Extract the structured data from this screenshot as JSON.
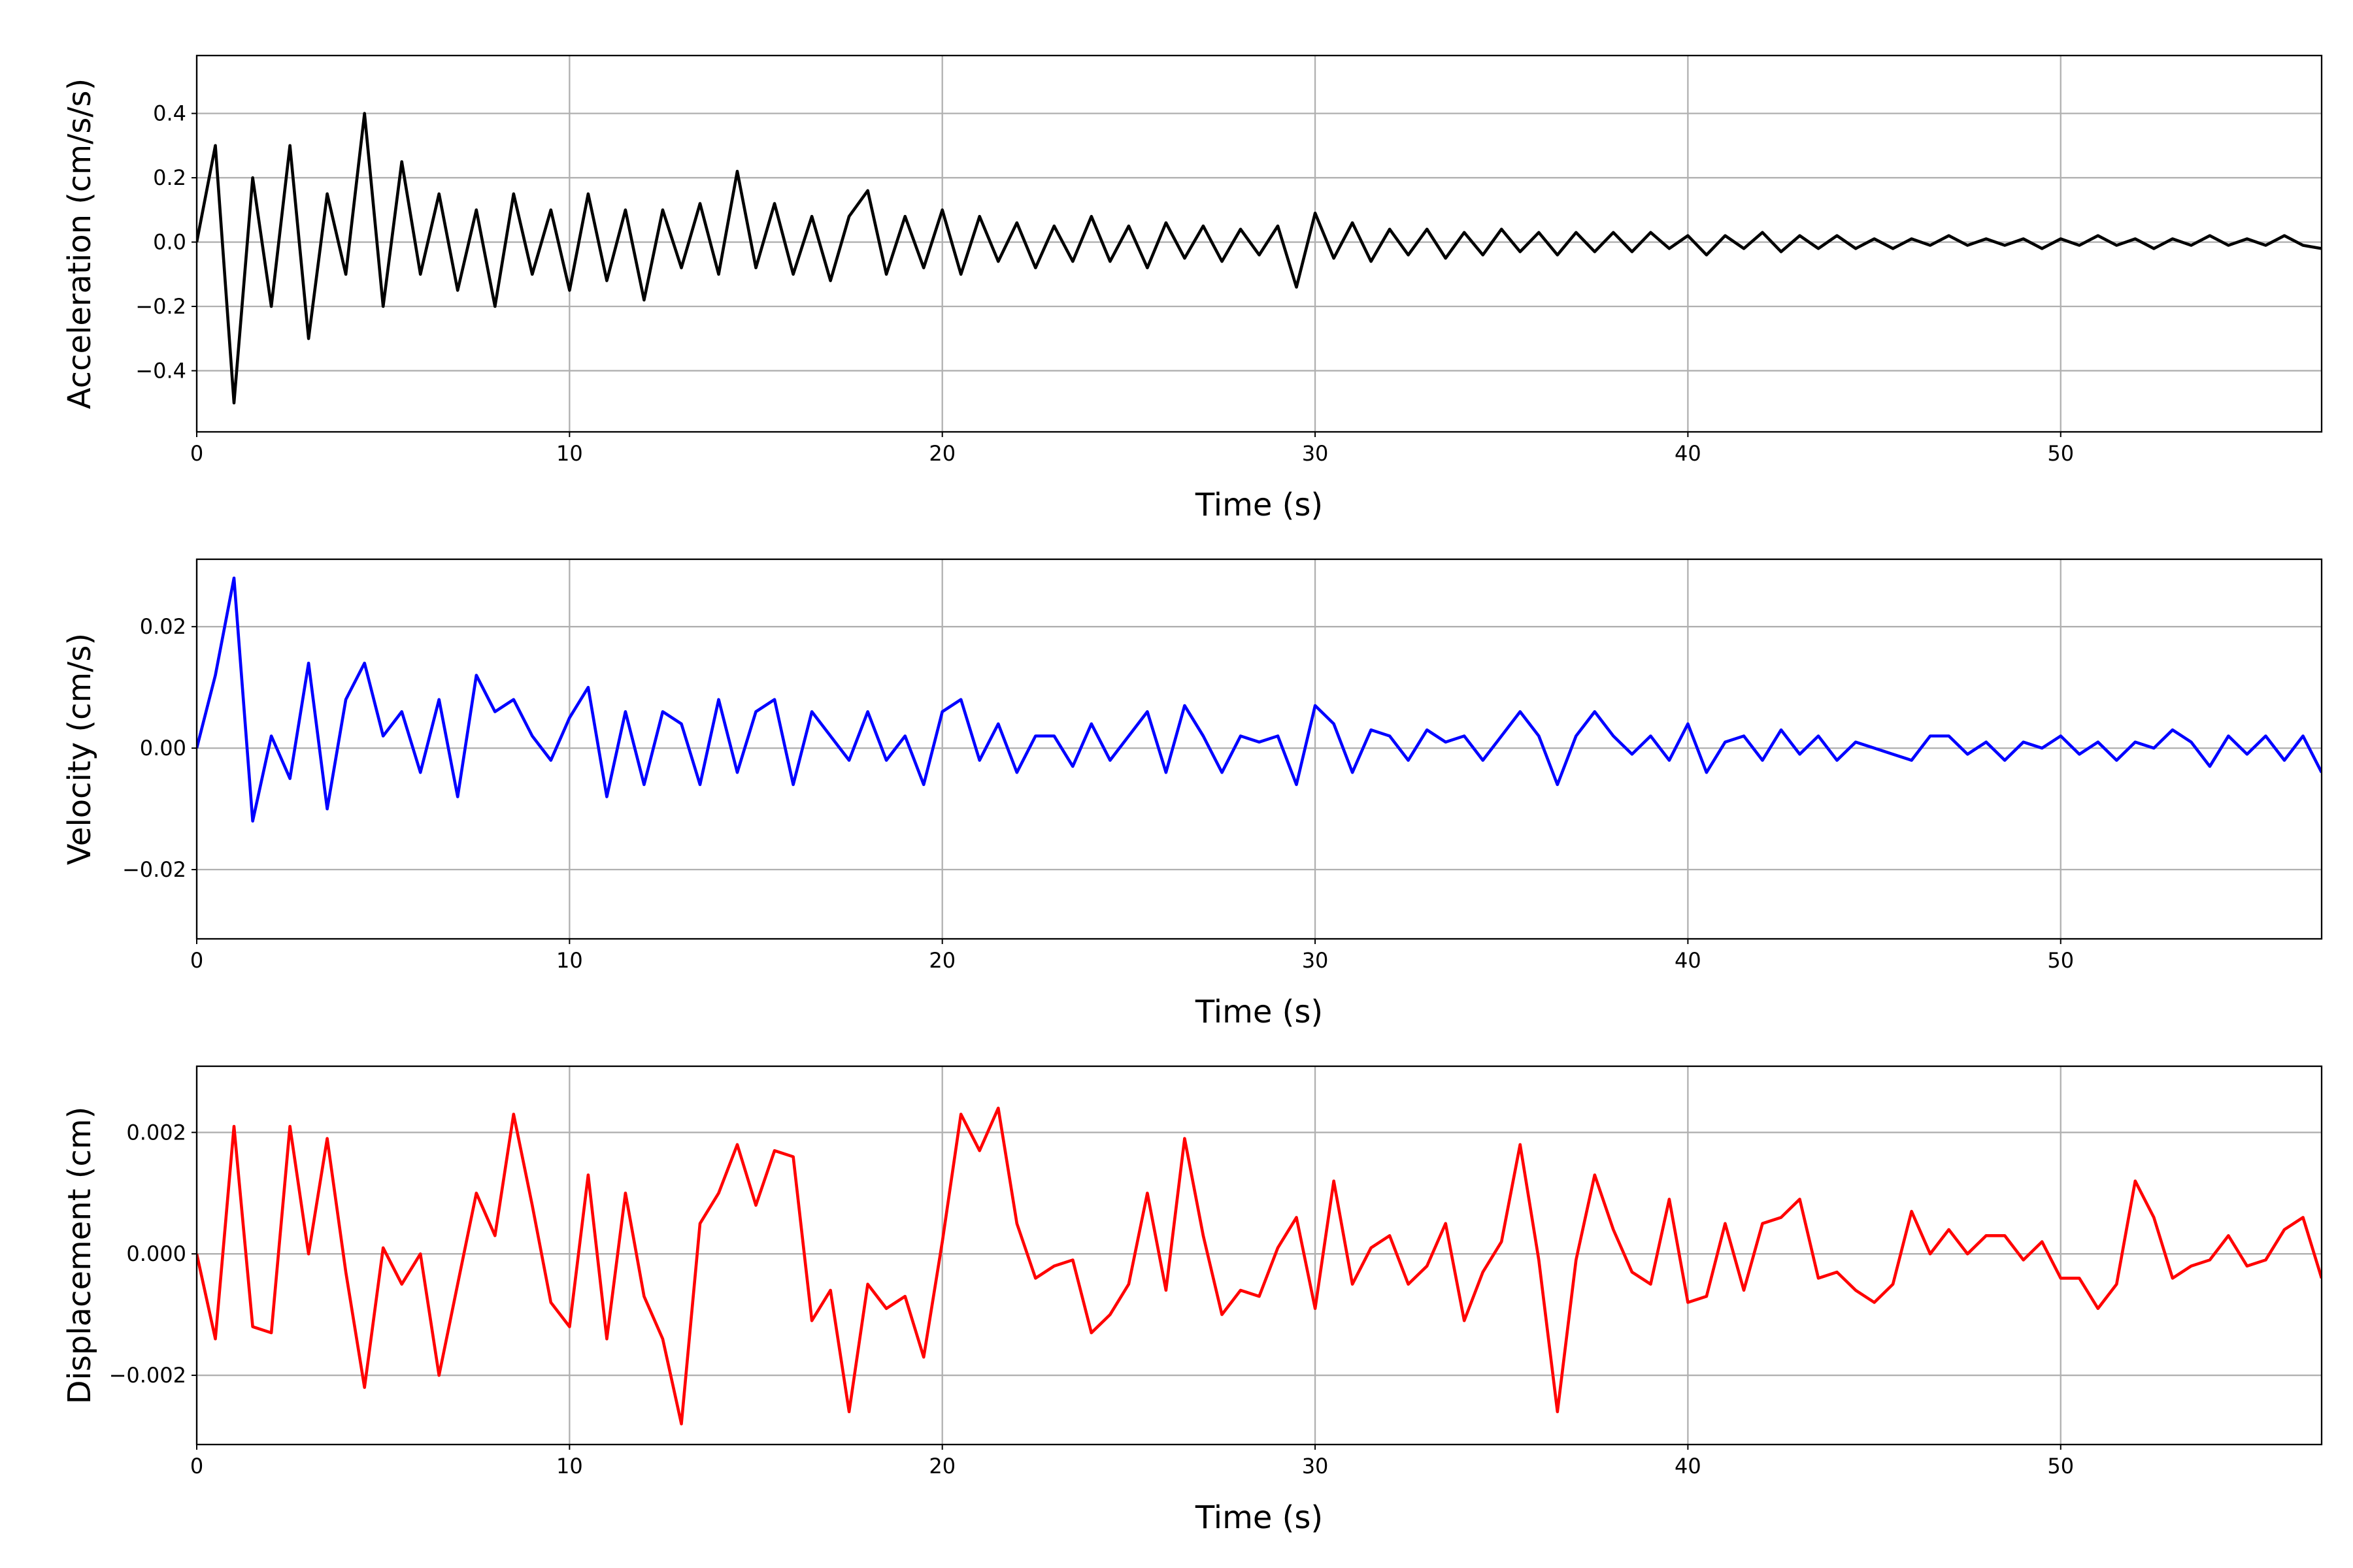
{
  "chart_data": [
    {
      "type": "line",
      "xlabel": "Time (s)",
      "ylabel": "Acceleration (cm/s/s)",
      "color": "#000000",
      "grid": true,
      "xlim": [
        0,
        57
      ],
      "xticks": [
        0,
        10,
        20,
        30,
        40,
        50
      ],
      "ylim": [
        -0.59,
        0.58
      ],
      "yticks": [
        {
          "value": -0.4,
          "label": "−0.4"
        },
        {
          "value": -0.2,
          "label": "−0.2"
        },
        {
          "value": 0,
          "label": "0.0"
        },
        0.2,
        0.4
      ],
      "x": [
        0,
        0.5,
        1,
        1.5,
        2,
        2.5,
        3,
        3.5,
        4,
        4.5,
        5,
        5.5,
        6,
        6.5,
        7,
        7.5,
        8,
        8.5,
        9,
        9.5,
        10,
        10.5,
        11,
        11.5,
        12,
        12.5,
        13,
        13.5,
        14,
        14.5,
        15,
        15.5,
        16,
        16.5,
        17,
        17.5,
        18,
        18.5,
        19,
        19.5,
        20,
        20.5,
        21,
        21.5,
        22,
        22.5,
        23,
        23.5,
        24,
        24.5,
        25,
        25.5,
        26,
        26.5,
        27,
        27.5,
        28,
        28.5,
        29,
        29.5,
        30,
        30.5,
        31,
        31.5,
        32,
        32.5,
        33,
        33.5,
        34,
        34.5,
        35,
        35.5,
        36,
        36.5,
        37,
        37.5,
        38,
        38.5,
        39,
        39.5,
        40,
        40.5,
        41,
        41.5,
        42,
        42.5,
        43,
        43.5,
        44,
        44.5,
        45,
        45.5,
        46,
        46.5,
        47,
        47.5,
        48,
        48.5,
        49,
        49.5,
        50,
        50.5,
        51,
        51.5,
        52,
        52.5,
        53,
        53.5,
        54,
        54.5,
        55,
        55.5,
        56,
        56.5,
        57
      ],
      "values": [
        0,
        0.3,
        -0.5,
        0.2,
        -0.2,
        0.3,
        -0.3,
        0.15,
        -0.1,
        0.4,
        -0.2,
        0.25,
        -0.1,
        0.15,
        -0.15,
        0.1,
        -0.2,
        0.15,
        -0.1,
        0.1,
        -0.15,
        0.15,
        -0.12,
        0.1,
        -0.18,
        0.1,
        -0.08,
        0.12,
        -0.1,
        0.22,
        -0.08,
        0.12,
        -0.1,
        0.08,
        -0.12,
        0.08,
        0.16,
        -0.1,
        0.08,
        -0.08,
        0.1,
        -0.1,
        0.08,
        -0.06,
        0.06,
        -0.08,
        0.05,
        -0.06,
        0.08,
        -0.06,
        0.05,
        -0.08,
        0.06,
        -0.05,
        0.05,
        -0.06,
        0.04,
        -0.04,
        0.05,
        -0.14,
        0.09,
        -0.05,
        0.06,
        -0.06,
        0.04,
        -0.04,
        0.04,
        -0.05,
        0.03,
        -0.04,
        0.04,
        -0.03,
        0.03,
        -0.04,
        0.03,
        -0.03,
        0.03,
        -0.03,
        0.03,
        -0.02,
        0.02,
        -0.04,
        0.02,
        -0.02,
        0.03,
        -0.03,
        0.02,
        -0.02,
        0.02,
        -0.02,
        0.01,
        -0.02,
        0.01,
        -0.01,
        0.02,
        -0.01,
        0.01,
        -0.01,
        0.01,
        -0.02,
        0.01,
        -0.01,
        0.02,
        -0.01,
        0.01,
        -0.02,
        0.01,
        -0.01,
        0.02,
        -0.01,
        0.01,
        -0.01,
        0.02,
        -0.01,
        -0.02
      ]
    },
    {
      "type": "line",
      "xlabel": "Time (s)",
      "ylabel": "Velocity (cm/s)",
      "color": "#0000ff",
      "grid": true,
      "xlim": [
        0,
        57
      ],
      "xticks": [
        0,
        10,
        20,
        30,
        40,
        50
      ],
      "ylim": [
        -0.0314,
        0.0311
      ],
      "yticks": [
        {
          "value": -0.02,
          "label": "−0.02"
        },
        {
          "value": 0,
          "label": "0.00"
        },
        0.02
      ],
      "x": [
        0,
        0.5,
        1,
        1.5,
        2,
        2.5,
        3,
        3.5,
        4,
        4.5,
        5,
        5.5,
        6,
        6.5,
        7,
        7.5,
        8,
        8.5,
        9,
        9.5,
        10,
        10.5,
        11,
        11.5,
        12,
        12.5,
        13,
        13.5,
        14,
        14.5,
        15,
        15.5,
        16,
        16.5,
        17,
        17.5,
        18,
        18.5,
        19,
        19.5,
        20,
        20.5,
        21,
        21.5,
        22,
        22.5,
        23,
        23.5,
        24,
        24.5,
        25,
        25.5,
        26,
        26.5,
        27,
        27.5,
        28,
        28.5,
        29,
        29.5,
        30,
        30.5,
        31,
        31.5,
        32,
        32.5,
        33,
        33.5,
        34,
        34.5,
        35,
        35.5,
        36,
        36.5,
        37,
        37.5,
        38,
        38.5,
        39,
        39.5,
        40,
        40.5,
        41,
        41.5,
        42,
        42.5,
        43,
        43.5,
        44,
        44.5,
        45,
        45.5,
        46,
        46.5,
        47,
        47.5,
        48,
        48.5,
        49,
        49.5,
        50,
        50.5,
        51,
        51.5,
        52,
        52.5,
        53,
        53.5,
        54,
        54.5,
        55,
        55.5,
        56,
        56.5,
        57
      ],
      "values": [
        0,
        0.012,
        0.028,
        -0.012,
        0.002,
        -0.005,
        0.014,
        -0.01,
        0.008,
        0.014,
        0.002,
        0.006,
        -0.004,
        0.008,
        -0.008,
        0.012,
        0.006,
        0.008,
        0.002,
        -0.002,
        0.005,
        0.01,
        -0.008,
        0.006,
        -0.006,
        0.006,
        0.004,
        -0.006,
        0.008,
        -0.004,
        0.006,
        0.008,
        -0.006,
        0.006,
        0.002,
        -0.002,
        0.006,
        -0.002,
        0.002,
        -0.006,
        0.006,
        0.008,
        -0.002,
        0.004,
        -0.004,
        0.002,
        0.002,
        -0.003,
        0.004,
        -0.002,
        0.002,
        0.006,
        -0.004,
        0.007,
        0.002,
        -0.004,
        0.002,
        0.001,
        0.002,
        -0.006,
        0.007,
        0.004,
        -0.004,
        0.003,
        0.002,
        -0.002,
        0.003,
        0.001,
        0.002,
        -0.002,
        0.002,
        0.006,
        0.002,
        -0.006,
        0.002,
        0.006,
        0.002,
        -0.001,
        0.002,
        -0.002,
        0.004,
        -0.004,
        0.001,
        0.002,
        -0.002,
        0.003,
        -0.001,
        0.002,
        -0.002,
        0.001,
        0,
        -0.001,
        -0.002,
        0.002,
        0.002,
        -0.001,
        0.001,
        -0.002,
        0.001,
        0,
        0.002,
        -0.001,
        0.001,
        -0.002,
        0.001,
        0,
        0.003,
        0.001,
        -0.003,
        0.002,
        -0.001,
        0.002,
        -0.002,
        0.002,
        -0.004
      ]
    },
    {
      "type": "line",
      "xlabel": "Time (s)",
      "ylabel": "Displacement (cm)",
      "color": "#ff0000",
      "grid": true,
      "xlim": [
        0,
        57
      ],
      "xticks": [
        0,
        10,
        20,
        30,
        40,
        50
      ],
      "ylim": [
        -0.00314,
        0.00309
      ],
      "yticks": [
        {
          "value": -0.002,
          "label": "−0.002"
        },
        {
          "value": 0,
          "label": "0.000"
        },
        0.002
      ],
      "x": [
        0,
        0.5,
        1,
        1.5,
        2,
        2.5,
        3,
        3.5,
        4,
        4.5,
        5,
        5.5,
        6,
        6.5,
        7,
        7.5,
        8,
        8.5,
        9,
        9.5,
        10,
        10.5,
        11,
        11.5,
        12,
        12.5,
        13,
        13.5,
        14,
        14.5,
        15,
        15.5,
        16,
        16.5,
        17,
        17.5,
        18,
        18.5,
        19,
        19.5,
        20,
        20.5,
        21,
        21.5,
        22,
        22.5,
        23,
        23.5,
        24,
        24.5,
        25,
        25.5,
        26,
        26.5,
        27,
        27.5,
        28,
        28.5,
        29,
        29.5,
        30,
        30.5,
        31,
        31.5,
        32,
        32.5,
        33,
        33.5,
        34,
        34.5,
        35,
        35.5,
        36,
        36.5,
        37,
        37.5,
        38,
        38.5,
        39,
        39.5,
        40,
        40.5,
        41,
        41.5,
        42,
        42.5,
        43,
        43.5,
        44,
        44.5,
        45,
        45.5,
        46,
        46.5,
        47,
        47.5,
        48,
        48.5,
        49,
        49.5,
        50,
        50.5,
        51,
        51.5,
        52,
        52.5,
        53,
        53.5,
        54,
        54.5,
        55,
        55.5,
        56,
        56.5,
        57
      ],
      "values": [
        0,
        -0.0014,
        0.0021,
        -0.0012,
        -0.0013,
        0.0021,
        0,
        0.0019,
        -0.0003,
        -0.0022,
        0.0001,
        -0.0005,
        0,
        -0.002,
        -0.0005,
        0.001,
        0.0003,
        0.0023,
        0.0008,
        -0.0008,
        -0.0012,
        0.0013,
        -0.0014,
        0.001,
        -0.0007,
        -0.0014,
        -0.0028,
        0.0005,
        0.001,
        0.0018,
        0.0008,
        0.0017,
        0.0016,
        -0.0011,
        -0.0006,
        -0.0026,
        -0.0005,
        -0.0009,
        -0.0007,
        -0.0017,
        0.0002,
        0.0023,
        0.0017,
        0.0024,
        0.0005,
        -0.0004,
        -0.0002,
        -0.0001,
        -0.0013,
        -0.001,
        -0.0005,
        0.001,
        -0.0006,
        0.0019,
        0.0003,
        -0.001,
        -0.0006,
        -0.0007,
        0.0001,
        0.0006,
        -0.0009,
        0.0012,
        -0.0005,
        0.0001,
        0.0003,
        -0.0005,
        -0.0002,
        0.0005,
        -0.0011,
        -0.0003,
        0.0002,
        0.0018,
        -0.0001,
        -0.0026,
        -0.0001,
        0.0013,
        0.0004,
        -0.0003,
        -0.0005,
        0.0009,
        -0.0008,
        -0.0007,
        0.0005,
        -0.0006,
        0.0005,
        0.0006,
        0.0009,
        -0.0004,
        -0.0003,
        -0.0006,
        -0.0008,
        -0.0005,
        0.0007,
        0,
        0.0004,
        0,
        0.0003,
        0.0003,
        -0.0001,
        0.0002,
        -0.0004,
        -0.0004,
        -0.0009,
        -0.0005,
        0.0012,
        0.0006,
        -0.0004,
        -0.0002,
        -0.0001,
        0.0003,
        -0.0002,
        -0.0001,
        0.0004,
        0.0006,
        -0.0004
      ]
    }
  ]
}
